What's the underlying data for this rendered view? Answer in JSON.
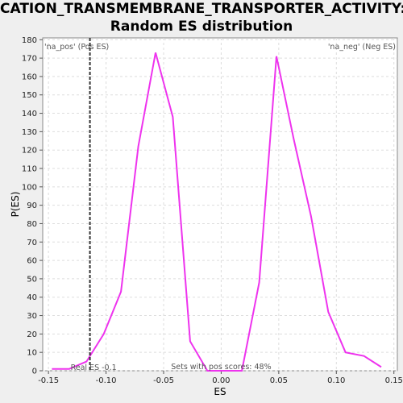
{
  "chart_data": {
    "type": "line",
    "title_line1": "CATION_TRANSMEMBRANE_TRANSPORTER_ACTIVITY:",
    "title_line2": "Random ES distribution",
    "xlabel": "ES",
    "ylabel": "P(ES)",
    "xlim": [
      -0.155,
      0.153
    ],
    "ylim": [
      0,
      181
    ],
    "xticks": [
      -0.15,
      -0.1,
      -0.05,
      0.0,
      0.05,
      0.1,
      0.15
    ],
    "xtick_labels": [
      "-0.15",
      "-0.10",
      "-0.05",
      "0.00",
      "0.05",
      "0.10",
      "0.15"
    ],
    "yticks": [
      0,
      10,
      20,
      30,
      40,
      50,
      60,
      70,
      80,
      90,
      100,
      110,
      120,
      130,
      140,
      150,
      160,
      170,
      180
    ],
    "grid": true,
    "series": [
      {
        "color": "#ee33ee",
        "x": [
          -0.147,
          -0.132,
          -0.117,
          -0.102,
          -0.087,
          -0.072,
          -0.057,
          -0.042,
          -0.027,
          -0.012,
          0.003,
          0.018,
          0.033,
          0.048,
          0.063,
          0.078,
          0.093,
          0.108,
          0.124,
          0.139
        ],
        "y": [
          1,
          1,
          5,
          20,
          43,
          122,
          173,
          138,
          16,
          0,
          0,
          0,
          48,
          171,
          126,
          84,
          32,
          10,
          8,
          2
        ]
      }
    ],
    "real_es": -0.114,
    "annotations": {
      "pos_label": "'na_pos' (Pos ES)",
      "neg_label": "'na_neg' (Neg ES)",
      "real_es_label": "Real ES -0.1",
      "pos_scores_label": "Sets with pos scores: 48%"
    },
    "colors": {
      "pos": "#ee3333",
      "neg": "#3333dd",
      "line": "#ee33ee",
      "grid": "#dddddd"
    }
  }
}
